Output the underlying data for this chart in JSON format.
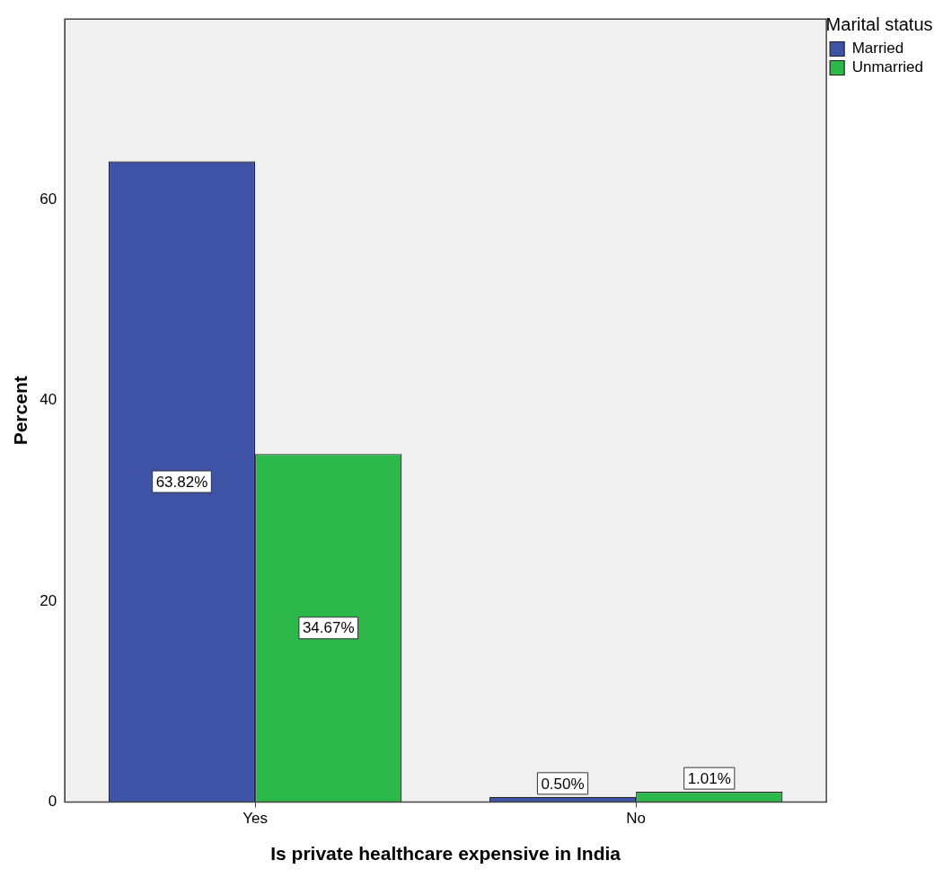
{
  "chart_data": {
    "type": "bar",
    "xlabel": "Is private healthcare expensive in India",
    "ylabel": "Percent",
    "legend_title": "Marital status",
    "legend": "top right",
    "categories": [
      "Yes",
      "No"
    ],
    "series": [
      {
        "name": "Married",
        "color": "#3e53a5",
        "values": [
          63.82,
          0.5
        ],
        "value_labels": [
          "63.82%",
          "0.50%"
        ]
      },
      {
        "name": "Unmarried",
        "color": "#2db84a",
        "values": [
          34.67,
          1.01
        ],
        "value_labels": [
          "34.67%",
          "1.01%"
        ]
      }
    ],
    "ylim": [
      0,
      78
    ],
    "yticks": [
      0,
      20,
      40,
      60
    ],
    "grid": false
  }
}
